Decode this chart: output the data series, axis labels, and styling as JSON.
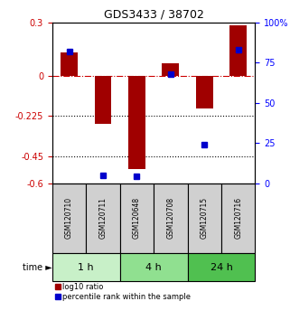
{
  "title": "GDS3433 / 38702",
  "samples": [
    "GSM120710",
    "GSM120711",
    "GSM120648",
    "GSM120708",
    "GSM120715",
    "GSM120716"
  ],
  "log10_ratio": [
    0.13,
    -0.27,
    -0.52,
    0.07,
    -0.18,
    0.285
  ],
  "percentile_rank": [
    82,
    5,
    4,
    68,
    24,
    83
  ],
  "time_groups": [
    {
      "label": "1 h",
      "samples": [
        0,
        1
      ],
      "color": "#c8f0c8"
    },
    {
      "label": "4 h",
      "samples": [
        2,
        3
      ],
      "color": "#90e090"
    },
    {
      "label": "24 h",
      "samples": [
        4,
        5
      ],
      "color": "#50c050"
    }
  ],
  "ylim_left": [
    -0.6,
    0.3
  ],
  "ylim_right": [
    0,
    100
  ],
  "yticks_left": [
    0.3,
    0,
    -0.225,
    -0.45,
    -0.6
  ],
  "ytick_labels_left": [
    "0.3",
    "0",
    "-0.225",
    "-0.45",
    "-0.6"
  ],
  "yticks_right": [
    100,
    75,
    50,
    25,
    0
  ],
  "ytick_labels_right": [
    "100%",
    "75",
    "50",
    "25",
    "0"
  ],
  "hlines_dotted": [
    -0.225,
    -0.45
  ],
  "hline_dashed": 0.0,
  "bar_color": "#a00000",
  "dot_color": "#0000cc",
  "bar_width": 0.5,
  "label_box_color": "#d0d0d0",
  "legend_red_label": "log10 ratio",
  "legend_blue_label": "percentile rank within the sample",
  "time_label": "time ►"
}
